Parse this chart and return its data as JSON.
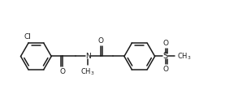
{
  "bg_color": "#ffffff",
  "line_color": "#1a1a1a",
  "line_width": 1.1,
  "font_size": 6.5,
  "fig_width": 3.09,
  "fig_height": 1.37,
  "dpi": 100,
  "xlim": [
    0,
    15.5
  ],
  "ylim": [
    0,
    6.5
  ]
}
